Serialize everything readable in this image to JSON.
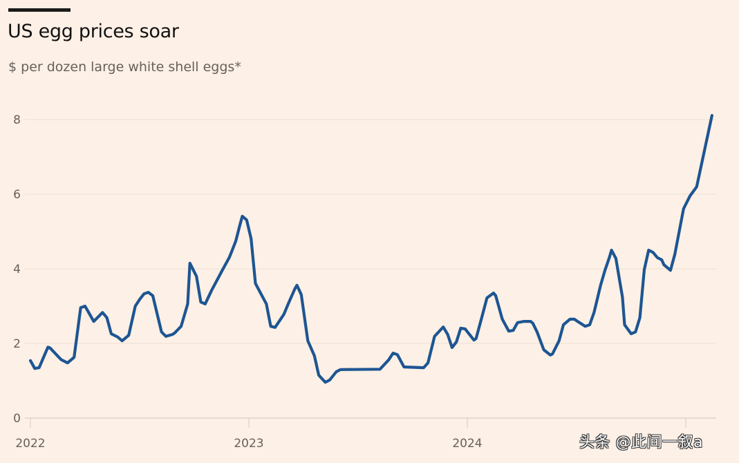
{
  "header": {
    "title": "US egg prices soar",
    "subtitle": "$ per dozen large white shell eggs*"
  },
  "watermark": "头条 @此间一叙a",
  "colors": {
    "background": "#fdf0e6",
    "line": "#1d5592",
    "gridline": "#ecdfd3",
    "axis_text": "#66605a"
  },
  "chart_data": {
    "type": "line",
    "title": "US egg prices soar",
    "subtitle": "$ per dozen large white shell eggs*",
    "xlabel": "",
    "ylabel": "$ per dozen",
    "ylim": [
      0,
      8.5
    ],
    "xlim": [
      2022.0,
      2025.13
    ],
    "grid": true,
    "legend": "none",
    "y_ticks": [
      0,
      2,
      4,
      6,
      8
    ],
    "y_tick_labels": [
      "0",
      "2",
      "4",
      "6",
      "8"
    ],
    "x_ticks": [
      2022,
      2023,
      2024
    ],
    "x_tick_labels": [
      "2022",
      "2023",
      "2024"
    ],
    "series": [
      {
        "name": "Egg price",
        "x": [
          2022.0,
          2022.02,
          2022.04,
          2022.08,
          2022.09,
          2022.14,
          2022.17,
          2022.2,
          2022.23,
          2022.25,
          2022.29,
          2022.33,
          2022.35,
          2022.37,
          2022.4,
          2022.42,
          2022.45,
          2022.48,
          2022.5,
          2022.52,
          2022.54,
          2022.56,
          2022.6,
          2022.62,
          2022.65,
          2022.66,
          2022.69,
          2022.72,
          2022.73,
          2022.76,
          2022.78,
          2022.8,
          2022.83,
          2022.88,
          2022.91,
          2022.92,
          2022.94,
          2022.96,
          2022.97,
          2022.99,
          2023.01,
          2023.03,
          2023.08,
          2023.1,
          2023.12,
          2023.16,
          2023.18,
          2023.21,
          2023.22,
          2023.24,
          2023.27,
          2023.3,
          2023.32,
          2023.35,
          2023.37,
          2023.4,
          2023.42,
          2023.6,
          2023.64,
          2023.66,
          2023.68,
          2023.71,
          2023.8,
          2023.82,
          2023.85,
          2023.89,
          2023.91,
          2023.93,
          2023.95,
          2023.97,
          2023.99,
          2024.03,
          2024.04,
          2024.07,
          2024.09,
          2024.12,
          2024.13,
          2024.16,
          2024.19,
          2024.21,
          2024.23,
          2024.26,
          2024.29,
          2024.3,
          2024.32,
          2024.35,
          2024.38,
          2024.39,
          2024.42,
          2024.44,
          2024.47,
          2024.49,
          2024.51,
          2024.54,
          2024.56,
          2024.58,
          2024.61,
          2024.63,
          2024.65,
          2024.66,
          2024.68,
          2024.71,
          2024.72,
          2024.75,
          2024.77,
          2024.79,
          2024.81,
          2024.83,
          2024.85,
          2024.87,
          2024.89,
          2024.9,
          2024.93,
          2024.95,
          2024.99,
          2025.02,
          2025.05,
          2025.12
        ],
        "values": [
          1.54,
          1.33,
          1.35,
          1.9,
          1.88,
          1.57,
          1.48,
          1.63,
          2.96,
          3.0,
          2.59,
          2.83,
          2.69,
          2.26,
          2.17,
          2.07,
          2.22,
          3.0,
          3.18,
          3.33,
          3.37,
          3.28,
          2.31,
          2.19,
          2.24,
          2.28,
          2.46,
          3.06,
          4.15,
          3.8,
          3.11,
          3.06,
          3.43,
          3.98,
          4.3,
          4.44,
          4.74,
          5.2,
          5.41,
          5.31,
          4.81,
          3.61,
          3.06,
          2.46,
          2.43,
          2.78,
          3.06,
          3.46,
          3.56,
          3.31,
          2.07,
          1.67,
          1.15,
          0.96,
          1.02,
          1.24,
          1.3,
          1.31,
          1.56,
          1.74,
          1.7,
          1.37,
          1.35,
          1.48,
          2.19,
          2.44,
          2.24,
          1.89,
          2.04,
          2.41,
          2.39,
          2.09,
          2.13,
          2.78,
          3.22,
          3.35,
          3.28,
          2.65,
          2.33,
          2.35,
          2.56,
          2.59,
          2.59,
          2.54,
          2.3,
          1.83,
          1.69,
          1.72,
          2.07,
          2.5,
          2.65,
          2.65,
          2.57,
          2.46,
          2.5,
          2.83,
          3.56,
          3.96,
          4.3,
          4.5,
          4.28,
          3.24,
          2.5,
          2.26,
          2.31,
          2.69,
          3.98,
          4.5,
          4.44,
          4.3,
          4.24,
          4.11,
          3.96,
          4.39,
          5.61,
          5.96,
          6.2,
          8.11
        ]
      }
    ],
    "footnote_marker": "*"
  }
}
